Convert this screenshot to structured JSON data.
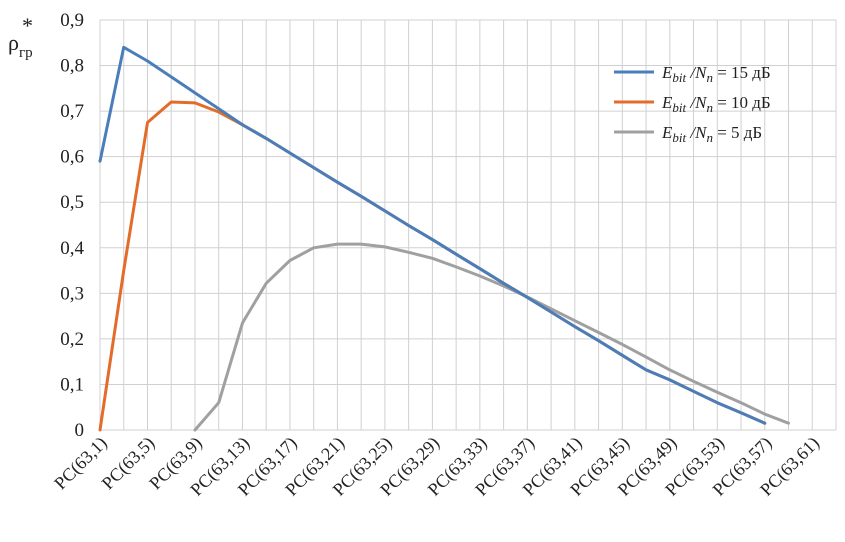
{
  "chart_data": {
    "type": "line",
    "title": "",
    "ylabel": "ρ*гр",
    "xlabel": "",
    "ylim": [
      0,
      0.9
    ],
    "yticks": [
      "0",
      "0,1",
      "0,2",
      "0,3",
      "0,4",
      "0,5",
      "0,6",
      "0,7",
      "0,8",
      "0,9"
    ],
    "grid": true,
    "legend_position": "top-right",
    "x_labels": [
      "РС(63,1)",
      "РС(63,5)",
      "РС(63,9)",
      "РС(63,13)",
      "РС(63,17)",
      "РС(63,21)",
      "РС(63,25)",
      "РС(63,29)",
      "РС(63,33)",
      "РС(63,37)",
      "РС(63,41)",
      "РС(63,45)",
      "РС(63,49)",
      "РС(63,53)",
      "РС(63,57)",
      "РС(63,61)"
    ],
    "x": [
      1,
      3,
      5,
      7,
      9,
      11,
      13,
      15,
      17,
      19,
      21,
      23,
      25,
      27,
      29,
      31,
      33,
      35,
      37,
      39,
      41,
      43,
      45,
      47,
      49,
      51,
      53,
      55,
      57,
      59,
      61,
      63
    ],
    "series": [
      {
        "name": "E_bit / N_n = 15 дБ",
        "color": "#4a7ebb",
        "values": [
          0.59,
          0.84,
          0.81,
          0.775,
          0.74,
          0.705,
          0.67,
          0.64,
          0.608,
          0.576,
          0.544,
          0.513,
          0.481,
          0.449,
          0.418,
          0.386,
          0.354,
          0.322,
          0.291,
          0.259,
          0.227,
          0.196,
          0.164,
          0.132,
          0.11,
          0.085,
          0.06,
          0.038,
          0.015,
          null,
          null,
          null
        ]
      },
      {
        "name": "E_bit / N_n = 10 дБ",
        "color": "#e36c2a",
        "values": [
          0.0,
          0.35,
          0.675,
          0.72,
          0.718,
          0.698,
          0.67,
          0.64,
          0.608,
          0.576,
          0.544,
          0.513,
          0.481,
          0.449,
          0.418,
          0.386,
          0.354,
          0.322,
          0.291,
          0.259,
          0.227,
          0.196,
          0.164,
          0.132,
          0.11,
          0.085,
          0.06,
          0.038,
          0.015,
          null,
          null,
          null
        ]
      },
      {
        "name": "E_bit / N_n = 5 дБ",
        "color": "#a0a0a0",
        "values": [
          null,
          null,
          null,
          null,
          0.0,
          0.06,
          0.235,
          0.322,
          0.372,
          0.4,
          0.408,
          0.408,
          0.402,
          0.39,
          0.377,
          0.358,
          0.338,
          0.316,
          0.292,
          0.266,
          0.24,
          0.214,
          0.188,
          0.16,
          0.132,
          0.107,
          0.083,
          0.06,
          0.035,
          0.015,
          null,
          null
        ]
      }
    ]
  },
  "legend": {
    "items": [
      {
        "base": "E",
        "sub": "bit",
        "mid": " /N",
        "sub2": "n",
        "tail": " = 15 дБ"
      },
      {
        "base": "E",
        "sub": "bit",
        "mid": " /N",
        "sub2": "n",
        "tail": " = 10 дБ"
      },
      {
        "base": "E",
        "sub": "bit",
        "mid": " /N",
        "sub2": "n",
        "tail": " = 5 дБ"
      }
    ]
  }
}
